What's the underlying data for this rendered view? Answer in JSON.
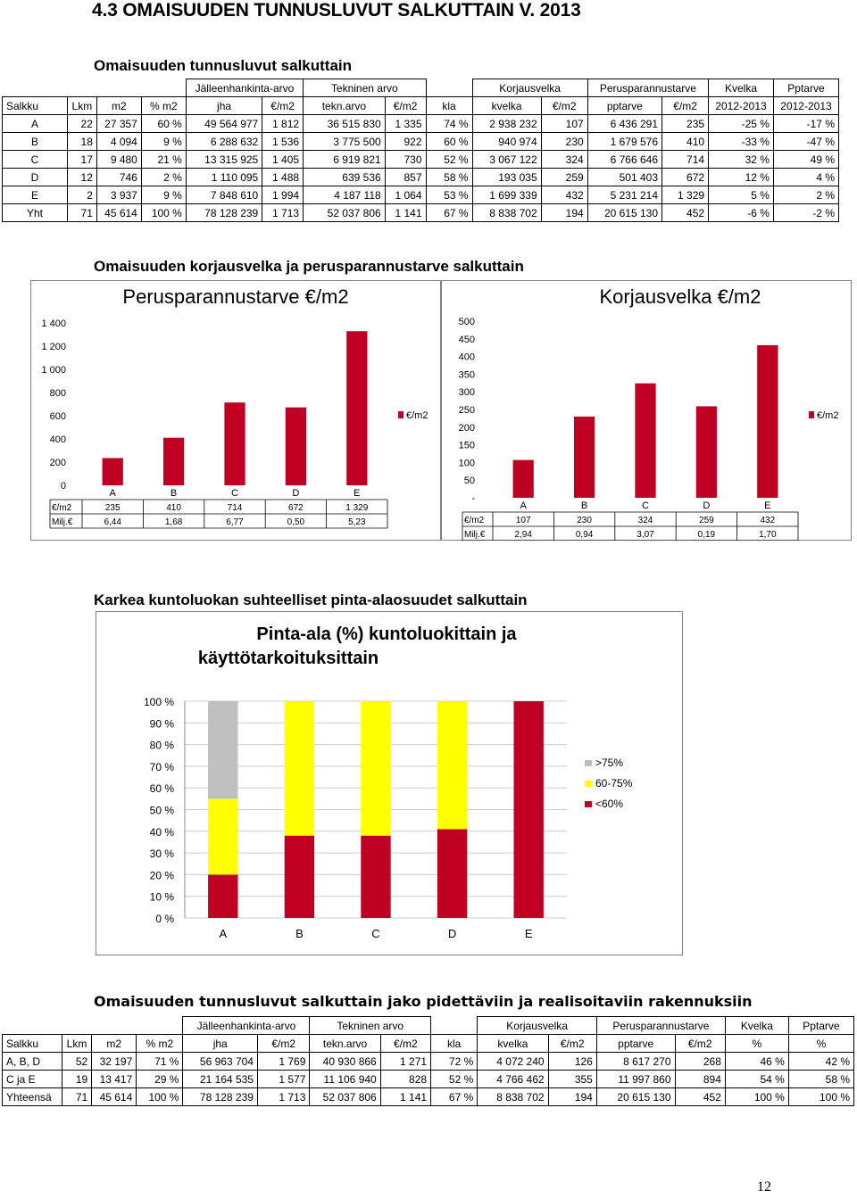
{
  "page_title": "4.3 OMAISUUDEN TUNNUSLUVUT SALKUTTAIN V. 2013",
  "section1": {
    "title": "Omaisuuden tunnusluvut salkuttain",
    "group_headers": [
      "Jälleenhankinta-arvo",
      "Tekninen arvo",
      "Korjausvelka",
      "Perusparannustarve",
      "Kvelka",
      "Pptarve"
    ],
    "columns": [
      "Salkku",
      "Lkm",
      "m2",
      "% m2",
      "jha",
      "€/m2",
      "tekn.arvo",
      "€/m2",
      "kla",
      "kvelka",
      "€/m2",
      "pptarve",
      "€/m2",
      "2012-2013",
      "2012-2013"
    ],
    "rows": [
      [
        "A",
        "22",
        "27 357",
        "60 %",
        "49 564 977",
        "1 812",
        "36 515 830",
        "1 335",
        "74 %",
        "2 938 232",
        "107",
        "6 436 291",
        "235",
        "-25 %",
        "-17 %"
      ],
      [
        "B",
        "18",
        "4 094",
        "9 %",
        "6 288 632",
        "1 536",
        "3 775 500",
        "922",
        "60 %",
        "940 974",
        "230",
        "1 679 576",
        "410",
        "-33 %",
        "-47 %"
      ],
      [
        "C",
        "17",
        "9 480",
        "21 %",
        "13 315 925",
        "1 405",
        "6 919 821",
        "730",
        "52 %",
        "3 067 122",
        "324",
        "6 766 646",
        "714",
        "32 %",
        "49 %"
      ],
      [
        "D",
        "12",
        "746",
        "2 %",
        "1 110 095",
        "1 488",
        "639 536",
        "857",
        "58 %",
        "193 035",
        "259",
        "501 403",
        "672",
        "12 %",
        "4 %"
      ],
      [
        "E",
        "2",
        "3 937",
        "9 %",
        "7 848 610",
        "1 994",
        "4 187 118",
        "1 064",
        "53 %",
        "1 699 339",
        "432",
        "5 231 214",
        "1 329",
        "5 %",
        "2 %"
      ],
      [
        "Yht",
        "71",
        "45 614",
        "100 %",
        "78 128 239",
        "1 713",
        "52 037 806",
        "1 141",
        "67 %",
        "8 838 702",
        "194",
        "20 615 130",
        "452",
        "-6 %",
        "-2 %"
      ]
    ]
  },
  "section2": {
    "title": "Omaisuuden korjausvelka ja perusparannustarve salkuttain"
  },
  "chart_data": [
    {
      "type": "bar",
      "title": "Perusparannustarve €/m2",
      "categories": [
        "A",
        "B",
        "C",
        "D",
        "E"
      ],
      "series": [
        {
          "name": "€/m2",
          "values": [
            235,
            410,
            714,
            672,
            1329
          ]
        }
      ],
      "ylim": [
        0,
        1400
      ],
      "y_ticks": [
        "0",
        "200",
        "400",
        "600",
        "800",
        "1 000",
        "1 200",
        "1 400"
      ],
      "table_rows": [
        {
          "label": "€/m2",
          "values": [
            "235",
            "410",
            "714",
            "672",
            "1 329"
          ]
        },
        {
          "label": "Milj.€",
          "values": [
            "6,44",
            "1,68",
            "6,77",
            "0,50",
            "5,23"
          ]
        }
      ],
      "legend": "right",
      "bar_color": "#c00022"
    },
    {
      "type": "bar",
      "title": "Korjausvelka €/m2",
      "categories": [
        "A",
        "B",
        "C",
        "D",
        "E"
      ],
      "series": [
        {
          "name": "€/m2",
          "values": [
            107,
            230,
            324,
            259,
            432
          ]
        }
      ],
      "ylim": [
        0,
        500
      ],
      "y_ticks": [
        "-",
        "50",
        "100",
        "150",
        "200",
        "250",
        "300",
        "350",
        "400",
        "450",
        "500"
      ],
      "table_rows": [
        {
          "label": "€/m2",
          "values": [
            "107",
            "230",
            "324",
            "259",
            "432"
          ]
        },
        {
          "label": "Milj.€",
          "values": [
            "2,94",
            "0,94",
            "3,07",
            "0,19",
            "1,70"
          ]
        }
      ],
      "legend": "right",
      "bar_color": "#c00022"
    },
    {
      "type": "bar",
      "stacked": true,
      "section_title": "Karkea kuntoluokan suhteelliset pinta-alaosuudet salkuttain",
      "title": "Pinta-ala (%) kuntoluokittain ja käyttötarkoituksittain",
      "categories": [
        "A",
        "B",
        "C",
        "D",
        "E"
      ],
      "series": [
        {
          "name": "<60%",
          "color": "#c00022",
          "values": [
            20,
            38,
            38,
            41,
            100
          ]
        },
        {
          "name": "60-75%",
          "color": "#ffff00",
          "values": [
            35,
            62,
            62,
            59,
            0
          ]
        },
        {
          "name": ">75%",
          "color": "#c0c0c0",
          "values": [
            45,
            0,
            0,
            0,
            0
          ]
        }
      ],
      "ylim": [
        0,
        100
      ],
      "y_ticks": [
        "0 %",
        "10 %",
        "20 %",
        "30 %",
        "40 %",
        "50 %",
        "60 %",
        "70 %",
        "80 %",
        "90 %",
        "100 %"
      ],
      "legend": "right",
      "legend_order": [
        ">75%",
        "60-75%",
        "<60%"
      ]
    }
  ],
  "section4": {
    "title": "Omaisuuden tunnusluvut salkuttain jako pidettäviin ja realisoitaviin rakennuksiin",
    "group_headers": [
      "Jälleenhankinta-arvo",
      "Tekninen arvo",
      "Korjausvelka",
      "Perusparannustarve",
      "Kvelka",
      "Pptarve"
    ],
    "columns": [
      "Salkku",
      "Lkm",
      "m2",
      "% m2",
      "jha",
      "€/m2",
      "tekn.arvo",
      "€/m2",
      "kla",
      "kvelka",
      "€/m2",
      "pptarve",
      "€/m2",
      "%",
      "%"
    ],
    "rows": [
      [
        "A, B, D",
        "52",
        "32 197",
        "71 %",
        "56 963 704",
        "1 769",
        "40 930 866",
        "1 271",
        "72 %",
        "4 072 240",
        "126",
        "8 617 270",
        "268",
        "46 %",
        "42 %"
      ],
      [
        "C ja E",
        "19",
        "13 417",
        "29 %",
        "21 164 535",
        "1 577",
        "11 106 940",
        "828",
        "52 %",
        "4 766 462",
        "355",
        "11 997 860",
        "894",
        "54 %",
        "58 %"
      ],
      [
        "Yhteensä",
        "71",
        "45 614",
        "100 %",
        "78 128 239",
        "1 713",
        "52 037 806",
        "1 141",
        "67 %",
        "8 838 702",
        "194",
        "20 615 130",
        "452",
        "100 %",
        "100 %"
      ]
    ]
  },
  "page_number": "12"
}
